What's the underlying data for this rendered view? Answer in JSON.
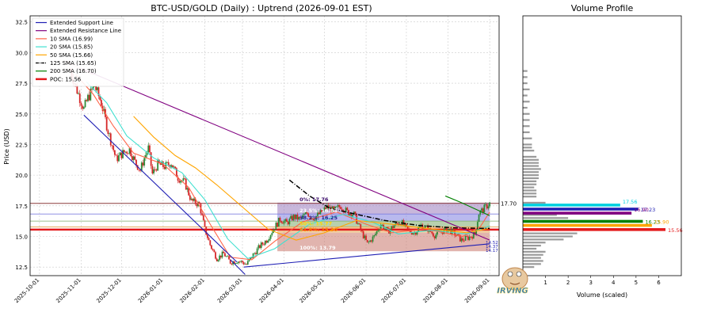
{
  "chart_data": [
    {
      "type": "candlestick",
      "title": "BTC-USD/GOLD (Daily) : Uptrend (2026-09-01 EST)",
      "ylabel": "Price (USD)",
      "ylim": [
        11.8,
        33.0
      ],
      "xlim": [
        "2025-09-24",
        "2026-09-08"
      ],
      "yticks": [
        "12.5",
        "15.0",
        "17.5",
        "20.0",
        "22.5",
        "25.0",
        "27.5",
        "30.0",
        "32.5"
      ],
      "xticks": [
        "2025-10-01",
        "2025-11-01",
        "2025-12-01",
        "2026-01-01",
        "2026-02-01",
        "2026-03-01",
        "2026-04-01",
        "2026-05-01",
        "2026-06-01",
        "2026-07-01",
        "2026-08-01",
        "2026-09-01"
      ],
      "grid": true,
      "legend": [
        {
          "label": "Extended Support Line",
          "color": "#1f1fb4"
        },
        {
          "label": "Extended Resistance Line",
          "color": "#800080"
        },
        {
          "label": "10 SMA (16.99)",
          "color": "#ff6347"
        },
        {
          "label": "20 SMA (15.85)",
          "color": "#40e0d0"
        },
        {
          "label": "50 SMA (15.66)",
          "color": "#ffa500"
        },
        {
          "label": "125 SMA (15.65)",
          "color": "#000000"
        },
        {
          "label": "200 SMA (16.70)",
          "color": "#008000"
        },
        {
          "label": "POC: 15.56",
          "color": "#e31a1c"
        }
      ],
      "price_anchors": [
        [
          "2025-10-24",
          28.6
        ],
        [
          "2025-10-28",
          27.2
        ],
        [
          "2025-11-03",
          25.4
        ],
        [
          "2025-11-06",
          26.3
        ],
        [
          "2025-11-11",
          27.3
        ],
        [
          "2025-11-16",
          25.9
        ],
        [
          "2025-11-21",
          23.6
        ],
        [
          "2025-11-27",
          21.3
        ],
        [
          "2025-12-02",
          21.8
        ],
        [
          "2025-12-07",
          22.1
        ],
        [
          "2025-12-11",
          21.1
        ],
        [
          "2025-12-15",
          20.4
        ],
        [
          "2025-12-18",
          21.4
        ],
        [
          "2025-12-21",
          22.2
        ],
        [
          "2025-12-24",
          20.1
        ],
        [
          "2025-12-28",
          20.9
        ],
        [
          "2026-01-02",
          20.7
        ],
        [
          "2026-01-07",
          21.0
        ],
        [
          "2026-01-12",
          19.8
        ],
        [
          "2026-01-17",
          19.4
        ],
        [
          "2026-01-22",
          17.9
        ],
        [
          "2026-01-28",
          17.6
        ],
        [
          "2026-02-01",
          15.6
        ],
        [
          "2026-02-05",
          14.3
        ],
        [
          "2026-02-10",
          13.2
        ],
        [
          "2026-02-15",
          13.6
        ],
        [
          "2026-02-20",
          12.9
        ],
        [
          "2026-02-25",
          13.0
        ],
        [
          "2026-03-01",
          12.9
        ],
        [
          "2026-03-04",
          12.7
        ],
        [
          "2026-03-09",
          13.5
        ],
        [
          "2026-03-14",
          14.2
        ],
        [
          "2026-03-19",
          14.7
        ],
        [
          "2026-03-24",
          15.6
        ],
        [
          "2026-03-29",
          16.4
        ],
        [
          "2026-04-03",
          16.1
        ],
        [
          "2026-04-08",
          16.6
        ],
        [
          "2026-04-13",
          16.4
        ],
        [
          "2026-04-18",
          16.9
        ],
        [
          "2026-04-23",
          16.5
        ],
        [
          "2026-04-28",
          16.9
        ],
        [
          "2026-05-03",
          17.4
        ],
        [
          "2026-05-08",
          17.1
        ],
        [
          "2026-05-13",
          17.5
        ],
        [
          "2026-05-18",
          17.0
        ],
        [
          "2026-05-23",
          16.8
        ],
        [
          "2026-05-28",
          15.5
        ],
        [
          "2026-06-02",
          14.4
        ],
        [
          "2026-06-07",
          15.0
        ],
        [
          "2026-06-12",
          16.0
        ],
        [
          "2026-06-17",
          15.4
        ],
        [
          "2026-06-22",
          15.9
        ],
        [
          "2026-06-27",
          16.2
        ],
        [
          "2026-07-02",
          15.5
        ],
        [
          "2026-07-07",
          15.3
        ],
        [
          "2026-07-12",
          15.9
        ],
        [
          "2026-07-17",
          15.6
        ],
        [
          "2026-07-22",
          15.1
        ],
        [
          "2026-07-27",
          15.4
        ],
        [
          "2026-08-01",
          15.6
        ],
        [
          "2026-08-06",
          15.2
        ],
        [
          "2026-08-11",
          14.7
        ],
        [
          "2026-08-16",
          14.9
        ],
        [
          "2026-08-21",
          15.2
        ],
        [
          "2026-08-24",
          16.9
        ],
        [
          "2026-08-27",
          17.2
        ],
        [
          "2026-08-30",
          17.5
        ],
        [
          "2026-09-01",
          17.7
        ]
      ],
      "sma_lines": [
        {
          "name": "10 SMA (16.99)",
          "color": "#ff6347",
          "points": [
            [
              "2025-10-28",
              28.2
            ],
            [
              "2025-11-10",
              26.6
            ],
            [
              "2025-11-25",
              24.0
            ],
            [
              "2025-12-10",
              21.8
            ],
            [
              "2026-01-01",
              20.9
            ],
            [
              "2026-01-20",
              19.0
            ],
            [
              "2026-02-05",
              16.0
            ],
            [
              "2026-02-20",
              13.3
            ],
            [
              "2026-03-08",
              13.1
            ],
            [
              "2026-03-25",
              14.6
            ],
            [
              "2026-04-15",
              16.2
            ],
            [
              "2026-05-10",
              17.0
            ],
            [
              "2026-06-01",
              16.0
            ],
            [
              "2026-06-20",
              15.3
            ],
            [
              "2026-07-15",
              15.6
            ],
            [
              "2026-08-12",
              15.0
            ],
            [
              "2026-08-25",
              15.8
            ],
            [
              "2026-09-01",
              16.99
            ]
          ]
        },
        {
          "name": "20 SMA (15.85)",
          "color": "#40e0d0",
          "points": [
            [
              "2025-11-05",
              27.6
            ],
            [
              "2025-11-20",
              25.9
            ],
            [
              "2025-12-05",
              23.2
            ],
            [
              "2025-12-25",
              21.4
            ],
            [
              "2026-01-15",
              20.2
            ],
            [
              "2026-02-01",
              18.0
            ],
            [
              "2026-02-18",
              14.8
            ],
            [
              "2026-03-05",
              13.2
            ],
            [
              "2026-03-25",
              14.0
            ],
            [
              "2026-04-20",
              16.0
            ],
            [
              "2026-05-15",
              16.8
            ],
            [
              "2026-06-05",
              16.2
            ],
            [
              "2026-06-25",
              15.2
            ],
            [
              "2026-07-20",
              15.5
            ],
            [
              "2026-08-15",
              15.2
            ],
            [
              "2026-09-01",
              15.85
            ]
          ]
        },
        {
          "name": "50 SMA (15.66)",
          "color": "#ffa500",
          "points": [
            [
              "2025-12-10",
              24.8
            ],
            [
              "2025-12-25",
              23.1
            ],
            [
              "2026-01-10",
              21.6
            ],
            [
              "2026-01-25",
              20.6
            ],
            [
              "2026-02-10",
              19.2
            ],
            [
              "2026-03-01",
              17.4
            ],
            [
              "2026-03-20",
              15.6
            ],
            [
              "2026-04-10",
              14.7
            ],
            [
              "2026-05-01",
              15.3
            ],
            [
              "2026-05-25",
              16.3
            ],
            [
              "2026-06-20",
              16.0
            ],
            [
              "2026-07-20",
              15.6
            ],
            [
              "2026-08-15",
              15.3
            ],
            [
              "2026-09-01",
              15.66
            ]
          ]
        },
        {
          "name": "125 SMA (15.65)",
          "color": "#000000",
          "dashed": true,
          "points": [
            [
              "2026-04-05",
              19.6
            ],
            [
              "2026-04-20",
              18.3
            ],
            [
              "2026-05-05",
              17.3
            ],
            [
              "2026-05-25",
              16.8
            ],
            [
              "2026-06-15",
              16.3
            ],
            [
              "2026-07-10",
              15.9
            ],
            [
              "2026-08-05",
              15.7
            ],
            [
              "2026-09-01",
              15.65
            ]
          ]
        },
        {
          "name": "200 SMA (16.70)",
          "color": "#008000",
          "points": [
            [
              "2026-07-30",
              18.3
            ],
            [
              "2026-08-10",
              17.8
            ],
            [
              "2026-08-20",
              17.3
            ],
            [
              "2026-09-01",
              16.7
            ]
          ]
        }
      ],
      "trend_lines": [
        {
          "name": "Extended Support Line",
          "color": "#1f1fb4",
          "points": [
            [
              "2025-11-03",
              24.9
            ],
            [
              "2026-02-25",
              12.9
            ]
          ]
        },
        {
          "name": "Extended Support Line (lower)",
          "color": "#1f1fb4",
          "points": [
            [
              "2026-02-20",
              13.1
            ],
            [
              "2026-03-03",
              11.9
            ]
          ]
        },
        {
          "name": "Extended Support Line (rising)",
          "color": "#1f1fb4",
          "points": [
            [
              "2026-03-02",
              12.5
            ],
            [
              "2026-09-01",
              14.4
            ]
          ]
        },
        {
          "name": "Extended Resistance Line",
          "color": "#800080",
          "points": [
            [
              "2025-11-01",
              28.7
            ],
            [
              "2026-09-01",
              14.7
            ]
          ]
        }
      ],
      "fib_box": {
        "x_start": "2026-03-27",
        "x_end": "2026-09-01",
        "high": 17.76,
        "low": 13.79
      },
      "fib_labels": [
        {
          "text": "0%: 17.76",
          "value": 17.76
        },
        {
          "text": "23.5%: 16.83",
          "value": 16.83
        },
        {
          "text": "38.2%: 16.25",
          "value": 16.25
        },
        {
          "text": "50%: 15.77",
          "value": 15.77
        },
        {
          "text": "61.8%: 15.30",
          "value": 15.3
        },
        {
          "text": "100%: 13.79",
          "value": 13.79
        }
      ],
      "horizontal_lines": [
        {
          "value": 17.7,
          "label": "17.70",
          "color": "#8b3a3a"
        },
        {
          "value": 15.56,
          "color": "#e31a1c"
        }
      ],
      "right_edge_labels": [
        "14.52",
        "14.37",
        "14.17"
      ]
    },
    {
      "type": "bar",
      "orientation": "horizontal",
      "title": "Volume Profile",
      "xlabel": "Volume (scaled)",
      "xlim": [
        0,
        7
      ],
      "xticks": [
        "1",
        "2",
        "3",
        "4",
        "5",
        "6"
      ],
      "gray_bars": [
        [
          12.5,
          0.5
        ],
        [
          12.75,
          0.8
        ],
        [
          13.0,
          0.9
        ],
        [
          13.25,
          0.8
        ],
        [
          13.5,
          0.9
        ],
        [
          13.75,
          1.0
        ],
        [
          14.0,
          0.6
        ],
        [
          14.25,
          0.8
        ],
        [
          14.5,
          1.0
        ],
        [
          14.75,
          1.8
        ],
        [
          15.0,
          2.2
        ],
        [
          15.25,
          2.4
        ],
        [
          16.5,
          2.0
        ],
        [
          16.75,
          1.5
        ],
        [
          17.25,
          1.2
        ],
        [
          17.75,
          1.0
        ],
        [
          18.25,
          0.6
        ],
        [
          18.5,
          0.6
        ],
        [
          18.75,
          0.6
        ],
        [
          19.0,
          0.5
        ],
        [
          19.25,
          0.6
        ],
        [
          19.5,
          0.6
        ],
        [
          19.75,
          0.7
        ],
        [
          20.0,
          0.7
        ],
        [
          20.25,
          0.7
        ],
        [
          20.5,
          0.8
        ],
        [
          20.75,
          0.7
        ],
        [
          21.0,
          0.7
        ],
        [
          21.25,
          0.7
        ],
        [
          21.5,
          0.6
        ],
        [
          22.0,
          0.5
        ],
        [
          22.25,
          0.4
        ],
        [
          22.5,
          0.4
        ],
        [
          23.0,
          0.4
        ],
        [
          23.5,
          0.3
        ],
        [
          24.0,
          0.3
        ],
        [
          24.5,
          0.3
        ],
        [
          25.0,
          0.3
        ],
        [
          25.5,
          0.2
        ],
        [
          26.0,
          0.3
        ],
        [
          26.5,
          0.2
        ],
        [
          27.0,
          0.3
        ],
        [
          27.5,
          0.2
        ],
        [
          28.0,
          0.2
        ],
        [
          28.5,
          0.2
        ]
      ],
      "highlight_bars": [
        {
          "value": 17.56,
          "volume": 4.3,
          "color": "#00d0e0",
          "label": "17.56"
        },
        {
          "value": 17.23,
          "volume": 5.1,
          "color": "#1f1fb4",
          "label": "17.23"
        },
        {
          "value": 16.9,
          "volume": 4.8,
          "color": "#800080",
          "label": "16.90"
        },
        {
          "value": 16.23,
          "volume": 5.3,
          "color": "#008000",
          "label": "16.23"
        },
        {
          "value": 15.9,
          "volume": 5.7,
          "color": "#ffa500",
          "label": "15.90"
        },
        {
          "value": 15.56,
          "volume": 6.3,
          "color": "#e31a1c",
          "label": "15.56"
        }
      ]
    }
  ],
  "watermark": {
    "text": "IRVING"
  }
}
